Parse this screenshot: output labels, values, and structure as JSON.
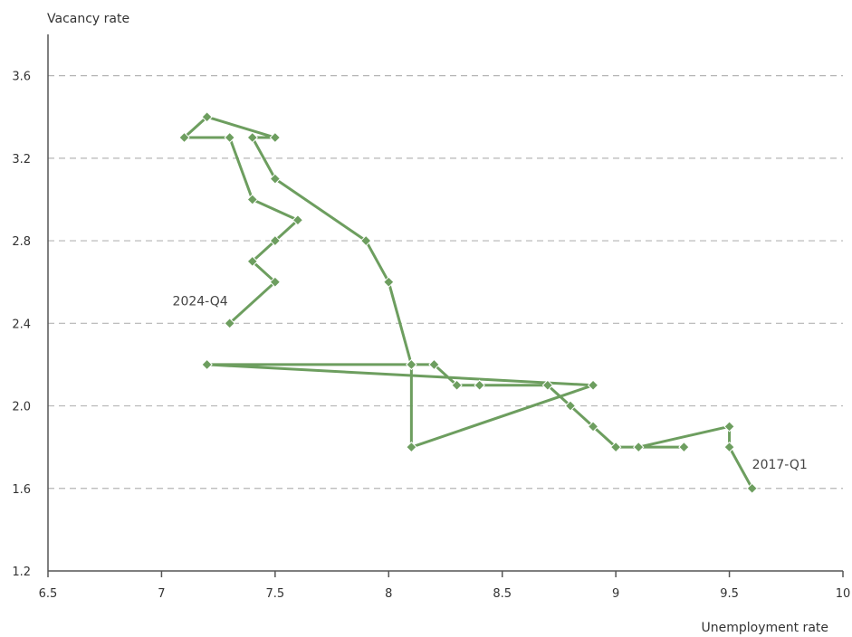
{
  "chart_data": {
    "type": "scatter",
    "connected": true,
    "xlabel": "Unemployment rate",
    "ylabel": "Vacancy rate",
    "xlim": [
      6.5,
      10
    ],
    "ylim": [
      1.2,
      3.8
    ],
    "xticks": [
      "6.5",
      "7",
      "7.5",
      "8",
      "8.5",
      "9",
      "9.5",
      "10"
    ],
    "yticks": [
      "1.2",
      "1.6",
      "2.0",
      "2.4",
      "2.8",
      "3.2",
      "3.6"
    ],
    "grid": "horizontal dashed",
    "color": "#6d9e5f",
    "marker": "diamond",
    "points": [
      {
        "x": 9.6,
        "y": 1.6
      },
      {
        "x": 9.5,
        "y": 1.8
      },
      {
        "x": 9.5,
        "y": 1.9
      },
      {
        "x": 9.1,
        "y": 1.8
      },
      {
        "x": 9.3,
        "y": 1.8
      },
      {
        "x": 9.0,
        "y": 1.8
      },
      {
        "x": 8.9,
        "y": 1.9
      },
      {
        "x": 8.8,
        "y": 2.0
      },
      {
        "x": 8.7,
        "y": 2.1
      },
      {
        "x": 8.4,
        "y": 2.1
      },
      {
        "x": 8.3,
        "y": 2.1
      },
      {
        "x": 8.2,
        "y": 2.2
      },
      {
        "x": 8.1,
        "y": 2.2
      },
      {
        "x": 7.2,
        "y": 2.2
      },
      {
        "x": 8.9,
        "y": 2.1
      },
      {
        "x": 8.1,
        "y": 1.8
      },
      {
        "x": 8.1,
        "y": 2.2
      },
      {
        "x": 8.0,
        "y": 2.6
      },
      {
        "x": 7.9,
        "y": 2.8
      },
      {
        "x": 7.5,
        "y": 3.1
      },
      {
        "x": 7.4,
        "y": 3.3
      },
      {
        "x": 7.5,
        "y": 3.3
      },
      {
        "x": 7.2,
        "y": 3.4
      },
      {
        "x": 7.1,
        "y": 3.3
      },
      {
        "x": 7.3,
        "y": 3.3
      },
      {
        "x": 7.4,
        "y": 3.0
      },
      {
        "x": 7.6,
        "y": 2.9
      },
      {
        "x": 7.5,
        "y": 2.8
      },
      {
        "x": 7.4,
        "y": 2.7
      },
      {
        "x": 7.5,
        "y": 2.6
      },
      {
        "x": 7.3,
        "y": 2.4
      }
    ],
    "annotations": [
      {
        "text": "2017-Q1",
        "x": 9.6,
        "y": 1.6
      },
      {
        "text": "2024-Q4",
        "x": 7.3,
        "y": 2.4
      }
    ]
  }
}
